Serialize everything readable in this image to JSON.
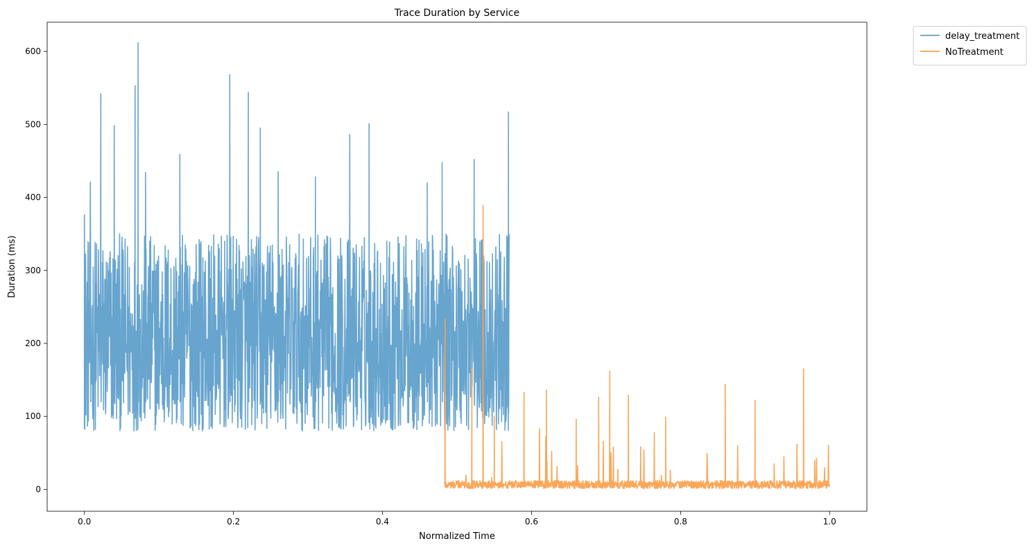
{
  "chart_data": {
    "type": "line",
    "title": "Trace Duration by Service",
    "xlabel": "Normalized Time",
    "ylabel": "Duration (ms)",
    "xlim": [
      -0.05,
      1.05
    ],
    "ylim": [
      -30,
      640
    ],
    "xticks": [
      0.0,
      0.2,
      0.4,
      0.6,
      0.8,
      1.0
    ],
    "xtick_labels": [
      "0.0",
      "0.2",
      "0.4",
      "0.6",
      "0.8",
      "1.0"
    ],
    "yticks": [
      0,
      100,
      200,
      300,
      400,
      500,
      600
    ],
    "ytick_labels": [
      "0",
      "100",
      "200",
      "300",
      "400",
      "500",
      "600"
    ],
    "grid": false,
    "legend_position": "outside-top-right",
    "series": [
      {
        "name": "delay_treatment",
        "color": "#5f9fcb",
        "x_range": [
          0.0,
          0.57
        ],
        "base_range": [
          80,
          350
        ],
        "spikes": [
          {
            "x": 0.0,
            "y": 376
          },
          {
            "x": 0.008,
            "y": 421
          },
          {
            "x": 0.022,
            "y": 542
          },
          {
            "x": 0.04,
            "y": 498
          },
          {
            "x": 0.068,
            "y": 553
          },
          {
            "x": 0.072,
            "y": 612
          },
          {
            "x": 0.082,
            "y": 434
          },
          {
            "x": 0.128,
            "y": 459
          },
          {
            "x": 0.195,
            "y": 568
          },
          {
            "x": 0.22,
            "y": 544
          },
          {
            "x": 0.236,
            "y": 495
          },
          {
            "x": 0.26,
            "y": 435
          },
          {
            "x": 0.31,
            "y": 428
          },
          {
            "x": 0.356,
            "y": 486
          },
          {
            "x": 0.382,
            "y": 501
          },
          {
            "x": 0.46,
            "y": 420
          },
          {
            "x": 0.48,
            "y": 448
          },
          {
            "x": 0.523,
            "y": 452
          },
          {
            "x": 0.569,
            "y": 517
          }
        ]
      },
      {
        "name": "NoTreatment",
        "color": "#fba14f",
        "x_range": [
          0.483,
          1.0
        ],
        "base_range": [
          1,
          12
        ],
        "spikes": [
          {
            "x": 0.484,
            "y": 234
          },
          {
            "x": 0.52,
            "y": 165
          },
          {
            "x": 0.535,
            "y": 389
          },
          {
            "x": 0.55,
            "y": 100
          },
          {
            "x": 0.59,
            "y": 133
          },
          {
            "x": 0.62,
            "y": 136
          },
          {
            "x": 0.66,
            "y": 96
          },
          {
            "x": 0.69,
            "y": 126
          },
          {
            "x": 0.705,
            "y": 162
          },
          {
            "x": 0.73,
            "y": 129
          },
          {
            "x": 0.78,
            "y": 99
          },
          {
            "x": 0.86,
            "y": 144
          },
          {
            "x": 0.9,
            "y": 122
          },
          {
            "x": 0.965,
            "y": 165
          },
          {
            "x": 0.995,
            "y": 10
          }
        ]
      }
    ]
  }
}
